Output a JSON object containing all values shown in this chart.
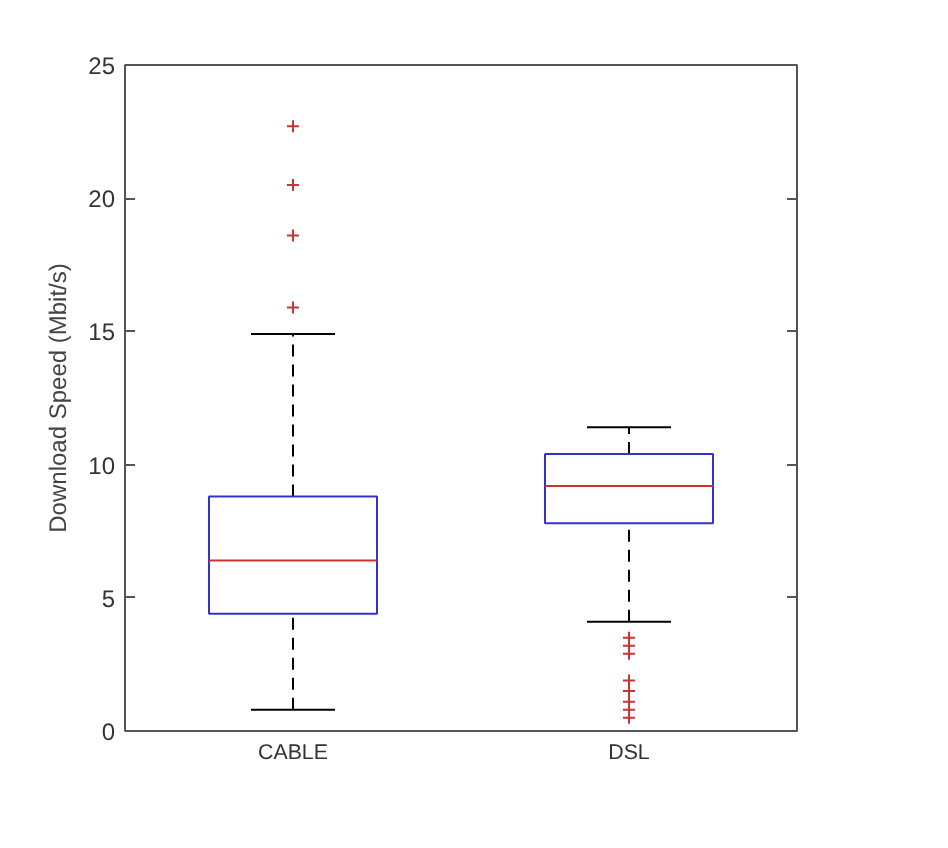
{
  "chart_data": {
    "type": "box",
    "ylabel": "Download Speed (Mbit/s)",
    "categories": [
      "CABLE",
      "DSL"
    ],
    "boxes": [
      {
        "low": 0.8,
        "q1": 4.4,
        "median": 6.4,
        "q3": 8.8,
        "high": 14.9,
        "outliers": [
          15.9,
          18.6,
          20.5,
          22.7
        ]
      },
      {
        "low": 4.1,
        "q1": 7.8,
        "median": 9.2,
        "q3": 10.4,
        "high": 11.4,
        "outliers": [
          3.5,
          3.2,
          2.9,
          1.9,
          1.5,
          1.1,
          0.8,
          0.5
        ]
      }
    ],
    "ylim": [
      0,
      25
    ],
    "yticks": [
      0,
      5,
      10,
      15,
      20,
      25
    ],
    "grid": false
  }
}
